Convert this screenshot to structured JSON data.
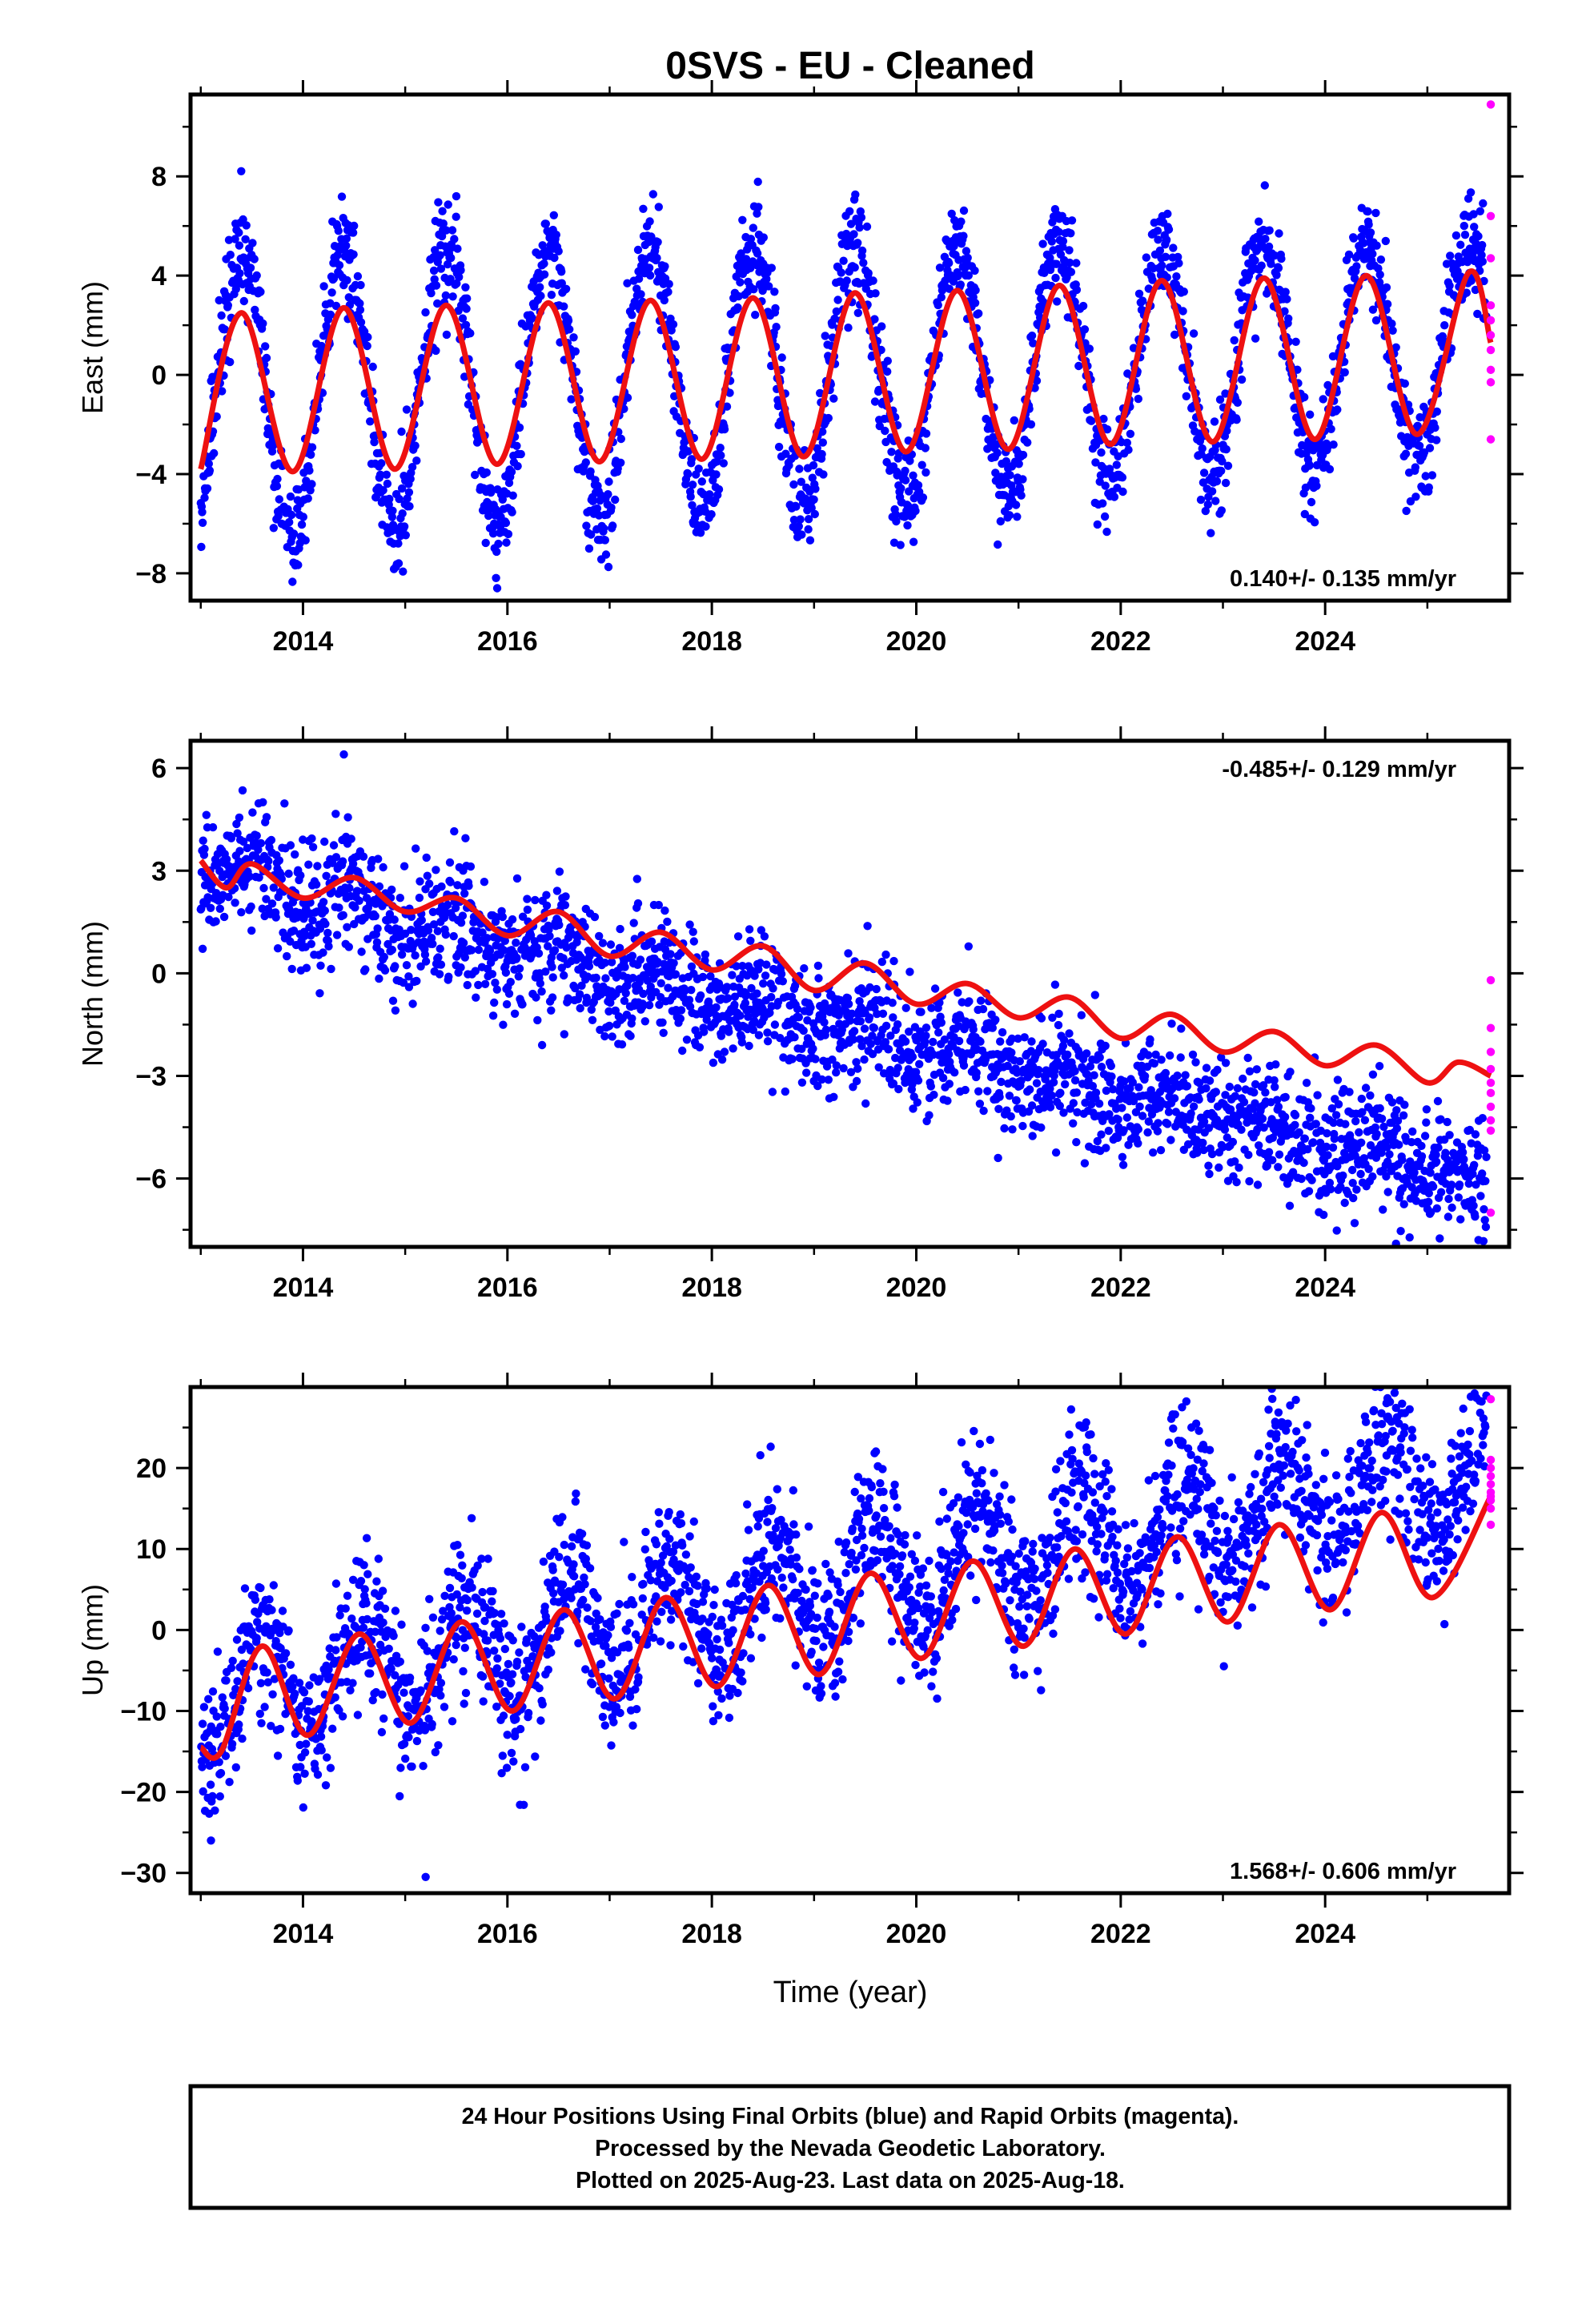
{
  "title": "0SVS  - EU - Cleaned",
  "xlabel": "Time (year)",
  "footer": {
    "line1": "24 Hour Positions Using Final Orbits (blue) and Rapid Orbits (magenta).",
    "line2": "Processed by the Nevada Geodetic Laboratory.",
    "line3": "Plotted on 2025-Aug-23. Last data on 2025-Aug-18."
  },
  "colors": {
    "final": "#0000ff",
    "rapid": "#ff00ff",
    "model": "#ee1111",
    "frame": "#000000"
  },
  "chart_data": [
    {
      "type": "scatter",
      "id": "east",
      "ylabel": "East (mm)",
      "rate_text": "0.140+/- 0.135 mm/yr",
      "rate_position": "bottom-right",
      "xlim": [
        2012.9,
        2025.8
      ],
      "ylim": [
        -9.1,
        11.3
      ],
      "xticks": [
        2014,
        2016,
        2018,
        2020,
        2022,
        2024
      ],
      "yticks": [
        -8,
        -4,
        0,
        4,
        8
      ],
      "series": [
        {
          "kind": "model_curve",
          "color": "#ee1111",
          "x": [
            2013.0,
            2013.4,
            2013.9,
            2014.4,
            2014.9,
            2015.4,
            2015.9,
            2016.4,
            2016.9,
            2017.4,
            2017.9,
            2018.4,
            2018.9,
            2019.4,
            2019.9,
            2020.4,
            2020.9,
            2021.4,
            2021.9,
            2022.4,
            2022.9,
            2023.4,
            2023.9,
            2024.4,
            2024.9,
            2025.4,
            2025.62
          ],
          "y": [
            -3.8,
            2.5,
            -3.9,
            2.7,
            -3.8,
            2.8,
            -3.6,
            2.9,
            -3.5,
            3.0,
            -3.4,
            3.1,
            -3.3,
            3.3,
            -3.1,
            3.4,
            -3.0,
            3.6,
            -2.8,
            3.8,
            -2.7,
            3.9,
            -2.6,
            4.0,
            -2.4,
            4.1,
            1.3
          ]
        },
        {
          "kind": "final_points",
          "color": "#0000ff",
          "x_range": [
            2013.0,
            2025.58
          ],
          "annual_amplitude": [
            6.0,
            4.3
          ],
          "phase_peak": 0.4,
          "offset": [
            -0.9,
            -0.8
          ],
          "trend": 0.14,
          "scatter_sd": 1.1,
          "extremes": [
            [
              2015.5,
              7.2
            ],
            [
              2015.9,
              -8.6
            ],
            [
              2016.8,
              -7.0
            ]
          ]
        },
        {
          "kind": "rapid_points",
          "color": "#ff00ff",
          "x": [
            2025.62,
            2025.62,
            2025.62,
            2025.62,
            2025.62,
            2025.62,
            2025.62,
            2025.62,
            2025.62,
            2025.62
          ],
          "y": [
            10.9,
            6.4,
            4.7,
            2.8,
            2.2,
            1.6,
            1.0,
            0.2,
            -0.3,
            -2.6
          ]
        }
      ]
    },
    {
      "type": "scatter",
      "id": "north",
      "ylabel": "North (mm)",
      "rate_text": "-0.485+/- 0.129 mm/yr",
      "rate_position": "top-right",
      "xlim": [
        2012.9,
        2025.8
      ],
      "ylim": [
        -8.0,
        6.8
      ],
      "xticks": [
        2014,
        2016,
        2018,
        2020,
        2022,
        2024
      ],
      "yticks": [
        -6,
        -3,
        0,
        3,
        6
      ],
      "series": [
        {
          "kind": "model_curve",
          "color": "#ee1111",
          "x": [
            2013.0,
            2013.25,
            2013.5,
            2014.0,
            2014.5,
            2015.0,
            2015.5,
            2016.0,
            2016.5,
            2017.0,
            2017.5,
            2018.0,
            2018.5,
            2019.0,
            2019.5,
            2020.0,
            2020.5,
            2021.0,
            2021.5,
            2022.0,
            2022.5,
            2023.0,
            2023.5,
            2024.0,
            2024.5,
            2025.0,
            2025.3,
            2025.62
          ],
          "y": [
            3.3,
            2.5,
            3.2,
            2.2,
            2.8,
            1.8,
            2.2,
            1.1,
            1.8,
            0.5,
            1.2,
            0.1,
            0.8,
            -0.5,
            0.3,
            -0.9,
            -0.3,
            -1.3,
            -0.7,
            -1.9,
            -1.2,
            -2.3,
            -1.7,
            -2.7,
            -2.1,
            -3.2,
            -2.6,
            -3.0
          ]
        },
        {
          "kind": "final_points",
          "color": "#0000ff",
          "x_range": [
            2013.0,
            2025.58
          ],
          "annual_amplitude": [
            0.5,
            0.3
          ],
          "phase_peak": 0.5,
          "offset": [
            3.0,
            0.0
          ],
          "trend": -0.485,
          "scatter_sd": 0.9,
          "extremes": [
            [
              2014.4,
              6.4
            ],
            [
              2025.5,
              -7.8
            ],
            [
              2020.8,
              -5.4
            ]
          ]
        },
        {
          "kind": "rapid_points",
          "color": "#ff00ff",
          "x": [
            2025.62,
            2025.62,
            2025.62,
            2025.62,
            2025.62,
            2025.62,
            2025.62,
            2025.62,
            2025.62,
            2025.62
          ],
          "y": [
            -0.2,
            -1.6,
            -2.3,
            -2.8,
            -3.2,
            -3.5,
            -3.9,
            -4.3,
            -4.6,
            -7.0
          ]
        }
      ]
    },
    {
      "type": "scatter",
      "id": "up",
      "ylabel": "Up (mm)",
      "rate_text": "1.568+/- 0.606 mm/yr",
      "rate_position": "bottom-right",
      "xlim": [
        2012.9,
        2025.8
      ],
      "ylim": [
        -32.5,
        30.0
      ],
      "xticks": [
        2014,
        2016,
        2018,
        2020,
        2022,
        2024
      ],
      "yticks": [
        -30,
        -20,
        -10,
        0,
        10,
        20
      ],
      "series": [
        {
          "kind": "model_curve",
          "color": "#ee1111",
          "x": [
            2013.0,
            2013.2,
            2013.6,
            2014.05,
            2014.55,
            2015.05,
            2015.55,
            2016.05,
            2016.55,
            2017.05,
            2017.55,
            2018.05,
            2018.55,
            2019.05,
            2019.55,
            2020.05,
            2020.55,
            2021.05,
            2021.55,
            2022.05,
            2022.55,
            2023.05,
            2023.55,
            2024.05,
            2024.55,
            2025.05,
            2025.62
          ],
          "y": [
            -14.5,
            -15.0,
            -2.0,
            -13.0,
            -0.5,
            -11.5,
            1.0,
            -10.0,
            2.5,
            -8.5,
            4.0,
            -7.0,
            5.5,
            -5.5,
            7.0,
            -3.5,
            8.5,
            -2.0,
            10.0,
            -0.5,
            11.5,
            1.0,
            13.0,
            2.5,
            14.5,
            4.0,
            16.5
          ]
        },
        {
          "kind": "final_points",
          "color": "#0000ff",
          "x_range": [
            2013.0,
            2025.58
          ],
          "annual_amplitude": [
            6.5,
            6.5
          ],
          "phase_peak": 0.6,
          "offset": [
            -8.5,
            0.0
          ],
          "trend": 1.568,
          "scatter_sd": 4.6,
          "extremes": [
            [
              2015.2,
              -30.5
            ],
            [
              2013.1,
              -26.0
            ],
            [
              2022.6,
              27.5
            ],
            [
              2024.6,
              28.0
            ]
          ]
        },
        {
          "kind": "rapid_points",
          "color": "#ff00ff",
          "x": [
            2025.62,
            2025.62,
            2025.62,
            2025.62,
            2025.62,
            2025.62,
            2025.62,
            2025.62,
            2025.62,
            2025.62
          ],
          "y": [
            28.5,
            21.0,
            20.0,
            19.0,
            18.0,
            17.0,
            16.5,
            16.0,
            15.0,
            13.0
          ]
        }
      ]
    }
  ]
}
